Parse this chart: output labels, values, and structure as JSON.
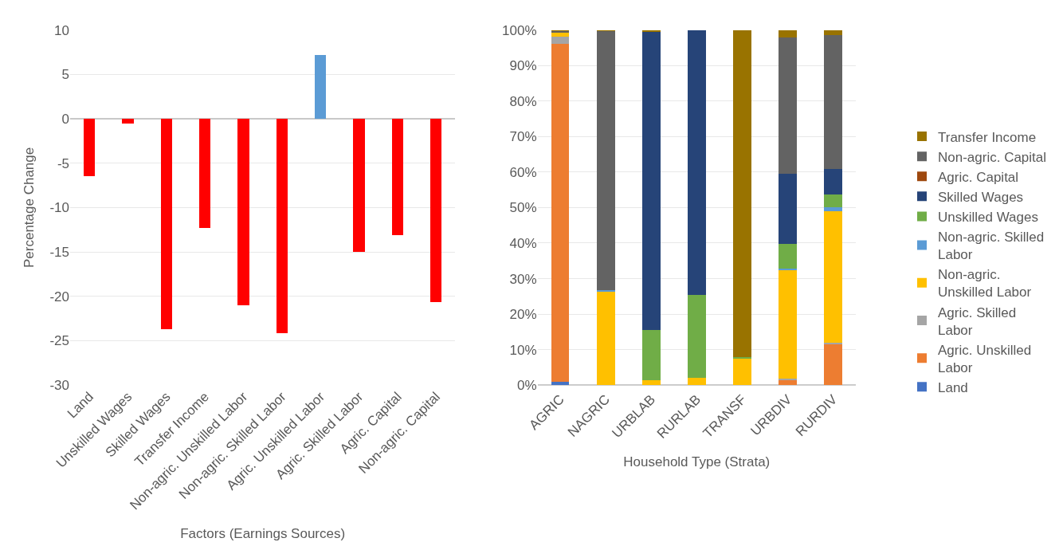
{
  "chart_data": [
    {
      "type": "bar",
      "xlabel": "Factors (Earnings Sources)",
      "ylabel": "Percentage Change",
      "categories": [
        "Land",
        "Unskilled Wages",
        "Skilled Wages",
        "Transfer Income",
        "Non-agric. Unskilled Labor",
        "Non-agric. Skilled Labor",
        "Agric. Unskilled Labor",
        "Agric. Skilled Labor",
        "Agric. Capital",
        "Non-agric. Capital"
      ],
      "values": [
        -6.5,
        -0.5,
        -23.7,
        -12.3,
        -21,
        -24.1,
        7.2,
        -15,
        -13.1,
        -20.6
      ],
      "colors": [
        "#ff0000",
        "#ff0000",
        "#ff0000",
        "#ff0000",
        "#ff0000",
        "#ff0000",
        "#5b9bd5",
        "#ff0000",
        "#ff0000",
        "#ff0000"
      ],
      "ylim": [
        -30,
        10
      ],
      "yticks": [
        -30,
        -25,
        -20,
        -15,
        -10,
        -5,
        0,
        5,
        10
      ],
      "grid": "y"
    },
    {
      "type": "bar",
      "stacked": true,
      "xlabel": "Household Type (Strata)",
      "legend": "right",
      "grid": "y",
      "categories": [
        "AGRIC",
        "NAGRIC",
        "URBLAB",
        "RURLAB",
        "TRANSF",
        "URBDIV",
        "RURDIV"
      ],
      "ylim": [
        0,
        100
      ],
      "yticks": [
        {
          "value": 0,
          "label": "0%"
        },
        {
          "value": 10,
          "label": "10%"
        },
        {
          "value": 20,
          "label": "20%"
        },
        {
          "value": 30,
          "label": "30%"
        },
        {
          "value": 40,
          "label": "40%"
        },
        {
          "value": 50,
          "label": "50%"
        },
        {
          "value": 60,
          "label": "60%"
        },
        {
          "value": 70,
          "label": "70%"
        },
        {
          "value": 80,
          "label": "80%"
        },
        {
          "value": 90,
          "label": "90%"
        },
        {
          "value": 100,
          "label": "100%"
        }
      ],
      "series": [
        {
          "name": "Land",
          "color": "#4472c4",
          "values": [
            1,
            0,
            0,
            0,
            0,
            0,
            0
          ]
        },
        {
          "name": "Agric. Unskilled Labor",
          "color": "#ed7d31",
          "values": [
            95,
            0,
            0,
            0,
            0,
            1.5,
            11.6
          ]
        },
        {
          "name": "Agric. Skilled Labor",
          "color": "#a5a5a5",
          "values": [
            2,
            0,
            0,
            0,
            0,
            0.3,
            0.4
          ]
        },
        {
          "name": "Non-agric. Unskilled Labor",
          "color": "#ffc000",
          "values": [
            1.5,
            26.3,
            1.5,
            2,
            7.6,
            30.5,
            37
          ]
        },
        {
          "name": "Non-agric. Skilled Labor",
          "color": "#5b9bd5",
          "values": [
            0,
            0.5,
            0,
            0,
            0,
            0.5,
            1
          ]
        },
        {
          "name": "Unskilled Wages",
          "color": "#70ad47",
          "values": [
            0,
            0,
            14,
            23.5,
            0.2,
            7,
            3.7
          ]
        },
        {
          "name": "Skilled Wages",
          "color": "#264478",
          "values": [
            0,
            0,
            84.1,
            74.5,
            0,
            19.7,
            7.1
          ]
        },
        {
          "name": "Agric. Capital",
          "color": "#9e480e",
          "values": [
            0,
            0,
            0,
            0,
            0,
            0,
            0
          ]
        },
        {
          "name": "Non-agric. Capital",
          "color": "#636363",
          "values": [
            0.3,
            73,
            0,
            0,
            0,
            38.4,
            37.7
          ]
        },
        {
          "name": "Transfer Income",
          "color": "#997300",
          "values": [
            0.2,
            0.2,
            0.4,
            0,
            92.2,
            2.1,
            1.5
          ]
        }
      ]
    }
  ]
}
